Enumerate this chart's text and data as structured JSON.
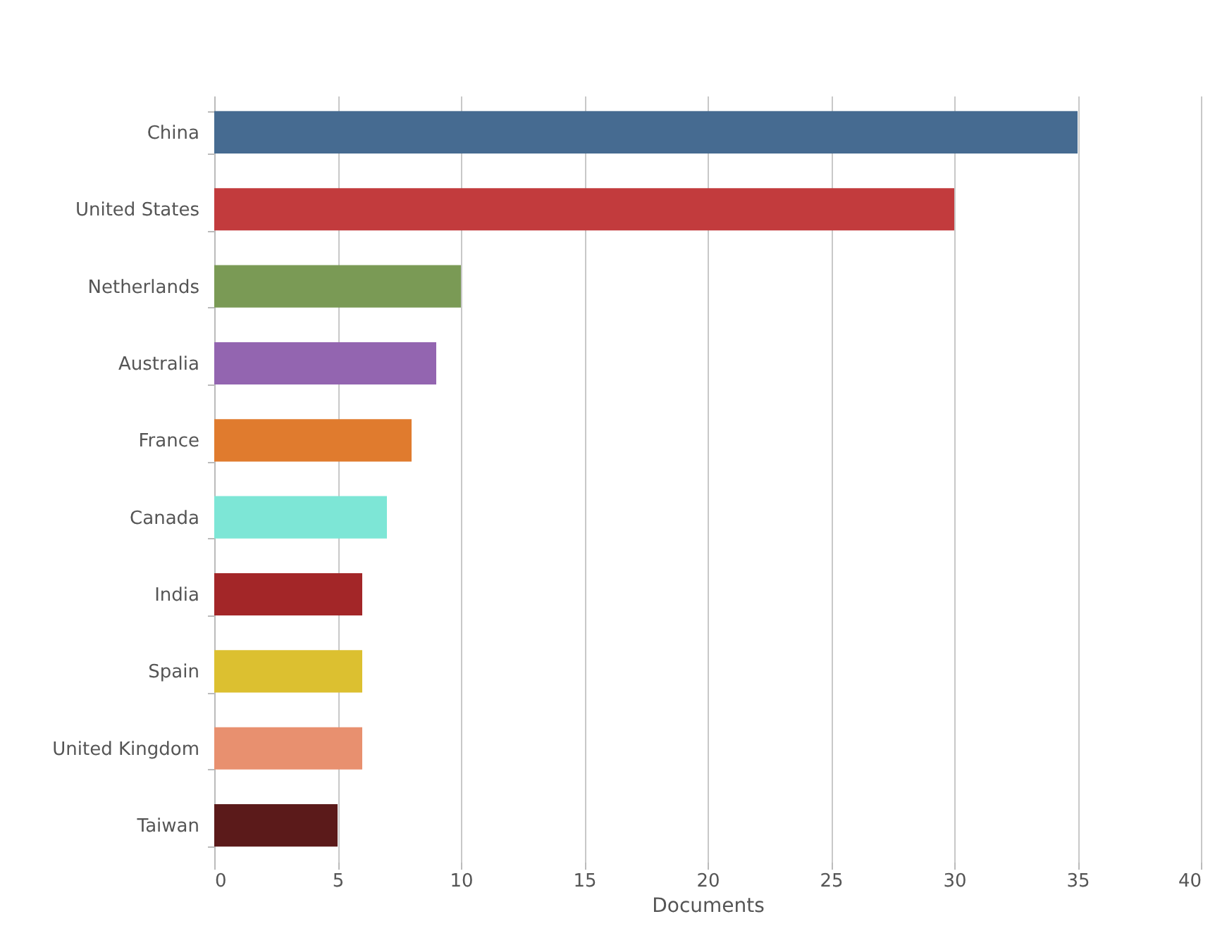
{
  "chart_data": {
    "type": "bar",
    "orientation": "horizontal",
    "xlabel": "Documents",
    "categories": [
      "China",
      "United States",
      "Netherlands",
      "Australia",
      "France",
      "Canada",
      "India",
      "Spain",
      "United Kingdom",
      "Taiwan"
    ],
    "values": [
      35,
      30,
      10,
      9,
      8,
      7,
      6,
      6,
      6,
      5
    ],
    "colors": [
      "#466b91",
      "#c23b3d",
      "#7a9a55",
      "#9365b0",
      "#e07b2e",
      "#7de6d6",
      "#a32628",
      "#dcc030",
      "#e8906f",
      "#5b1a1a"
    ],
    "xlim": [
      0,
      40
    ],
    "xticks": [
      0,
      5,
      10,
      15,
      20,
      25,
      30,
      35,
      40
    ],
    "grid": "x"
  }
}
